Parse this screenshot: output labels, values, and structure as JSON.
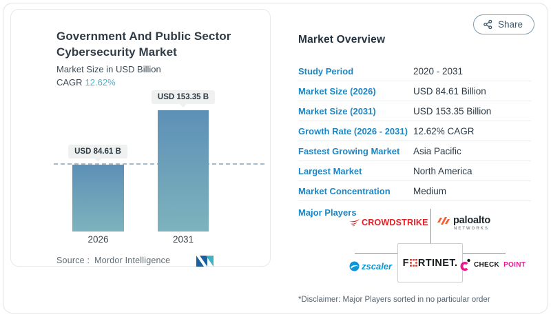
{
  "share": {
    "label": "Share"
  },
  "left_card": {
    "title_line1": "Government And Public Sector",
    "title_line2": "Cybersecurity Market",
    "subtitle": "Market Size in USD Billion",
    "cagr_label": "CAGR",
    "cagr_value": "12.62%",
    "source_label": "Source :",
    "source_value": "Mordor Intelligence"
  },
  "chart_data": {
    "type": "bar",
    "title": "Government And Public Sector Cybersecurity Market",
    "ylabel": "Market Size in USD Billion",
    "categories": [
      "2026",
      "2031"
    ],
    "values": [
      84.61,
      153.35
    ],
    "value_labels": [
      "USD 84.61 B",
      "USD 153.35 B"
    ],
    "cagr_pct": 12.62,
    "reference_line_value": 84.61,
    "bar_color_top": "#5d90b6",
    "bar_color_bottom": "#7db3bd",
    "grid": false,
    "legend": false
  },
  "overview": {
    "heading": "Market Overview",
    "rows": [
      {
        "label": "Study Period",
        "value": "2020 - 2031"
      },
      {
        "label": "Market Size (2026)",
        "value": "USD 84.61 Billion"
      },
      {
        "label": "Market Size (2031)",
        "value": "USD 153.35 Billion"
      },
      {
        "label": "Growth Rate (2026 - 2031)",
        "value": "12.62% CAGR"
      },
      {
        "label": "Fastest Growing Market",
        "value": "Asia Pacific"
      },
      {
        "label": "Largest Market",
        "value": "North America"
      },
      {
        "label": "Market Concentration",
        "value": "Medium"
      }
    ],
    "major_players_label": "Major Players",
    "players": [
      "CrowdStrike",
      "Palo Alto Networks",
      "Fortinet",
      "Zscaler",
      "Check Point"
    ],
    "players_display": {
      "crowdstrike": "CROWDSTRIKE",
      "paloalto": "paloalto",
      "paloalto_sub": "NETWORKS",
      "fortinet_pre": "F",
      "fortinet_post": "RTINET.",
      "zscaler": "zscaler",
      "checkpoint_1": "CHECK",
      "checkpoint_2": "POINT"
    },
    "disclaimer": "*Disclaimer: Major Players sorted in no particular order"
  },
  "icons": {
    "share_button": "share-nodes-icon",
    "mordor_logo": "mordor-intelligence-logo"
  },
  "colors": {
    "label_blue": "#1b87c4",
    "value_dark": "#2b3944",
    "cagr_teal": "#4fb0c7",
    "crowdstrike_red": "#e01e25",
    "paloalto_orange": "#fa582d",
    "fortinet_red": "#ee3124",
    "zscaler_blue": "#0a96d7",
    "checkpoint_pink": "#ee168d"
  }
}
